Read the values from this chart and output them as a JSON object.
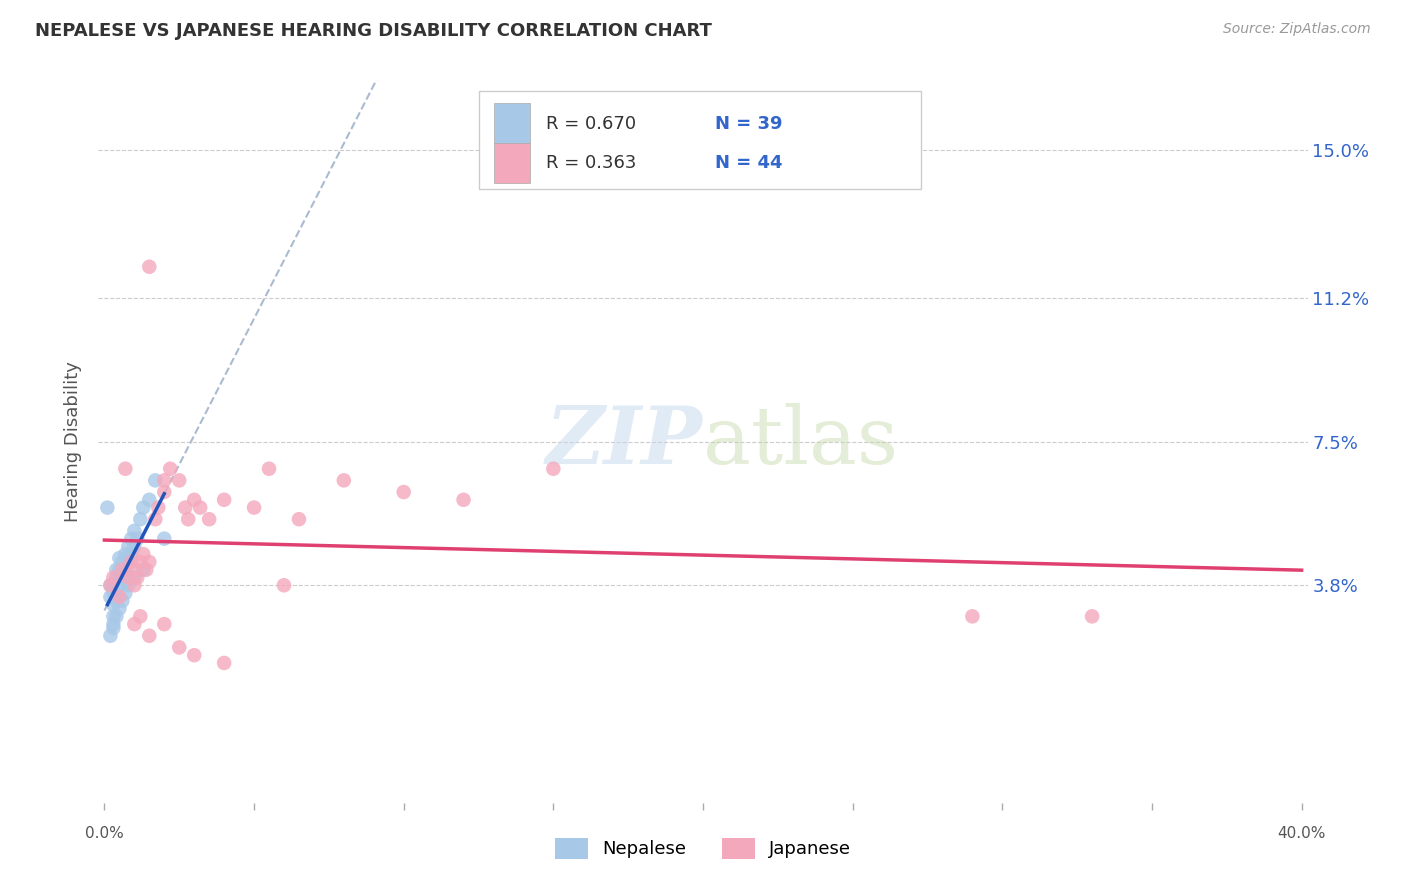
{
  "title": "NEPALESE VS JAPANESE HEARING DISABILITY CORRELATION CHART",
  "source": "Source: ZipAtlas.com",
  "ylabel": "Hearing Disability",
  "ytick_labels": [
    "15.0%",
    "11.2%",
    "7.5%",
    "3.8%"
  ],
  "ytick_values": [
    0.15,
    0.112,
    0.075,
    0.038
  ],
  "xlim": [
    -0.002,
    0.402
  ],
  "ylim": [
    -0.018,
    0.168
  ],
  "legend_r1": "R = 0.670",
  "legend_n1": "N = 39",
  "legend_r2": "R = 0.363",
  "legend_n2": "N = 44",
  "nepalese_color": "#A8C8E8",
  "japanese_color": "#F4A8BC",
  "nepalese_line_color": "#2255BB",
  "japanese_line_color": "#E04070",
  "dashed_line_color": "#AABBD0",
  "watermark_zip": "ZIP",
  "watermark_atlas": "atlas",
  "background_color": "#FFFFFF",
  "grid_color": "#CCCCCC",
  "nepalese_x": [
    0.001,
    0.002,
    0.002,
    0.003,
    0.003,
    0.003,
    0.003,
    0.004,
    0.004,
    0.004,
    0.005,
    0.005,
    0.005,
    0.006,
    0.006,
    0.007,
    0.007,
    0.008,
    0.008,
    0.009,
    0.009,
    0.01,
    0.01,
    0.011,
    0.012,
    0.013,
    0.015,
    0.017,
    0.002,
    0.003,
    0.003,
    0.004,
    0.005,
    0.006,
    0.007,
    0.008,
    0.01,
    0.013,
    0.02
  ],
  "nepalese_y": [
    0.058,
    0.035,
    0.038,
    0.03,
    0.033,
    0.036,
    0.038,
    0.034,
    0.04,
    0.042,
    0.038,
    0.042,
    0.045,
    0.04,
    0.044,
    0.042,
    0.046,
    0.044,
    0.048,
    0.046,
    0.05,
    0.048,
    0.052,
    0.05,
    0.055,
    0.058,
    0.06,
    0.065,
    0.025,
    0.027,
    0.028,
    0.03,
    0.032,
    0.034,
    0.036,
    0.038,
    0.04,
    0.042,
    0.05
  ],
  "japanese_x": [
    0.002,
    0.003,
    0.005,
    0.006,
    0.007,
    0.008,
    0.009,
    0.01,
    0.01,
    0.011,
    0.012,
    0.013,
    0.014,
    0.015,
    0.015,
    0.017,
    0.018,
    0.02,
    0.02,
    0.022,
    0.025,
    0.027,
    0.028,
    0.03,
    0.032,
    0.035,
    0.04,
    0.05,
    0.055,
    0.065,
    0.08,
    0.1,
    0.12,
    0.15,
    0.29,
    0.33,
    0.01,
    0.012,
    0.015,
    0.02,
    0.025,
    0.03,
    0.04,
    0.06
  ],
  "japanese_y": [
    0.038,
    0.04,
    0.035,
    0.042,
    0.068,
    0.04,
    0.044,
    0.038,
    0.042,
    0.04,
    0.044,
    0.046,
    0.042,
    0.044,
    0.12,
    0.055,
    0.058,
    0.062,
    0.065,
    0.068,
    0.065,
    0.058,
    0.055,
    0.06,
    0.058,
    0.055,
    0.06,
    0.058,
    0.068,
    0.055,
    0.065,
    0.062,
    0.06,
    0.068,
    0.03,
    0.03,
    0.028,
    0.03,
    0.025,
    0.028,
    0.022,
    0.02,
    0.018,
    0.038
  ]
}
